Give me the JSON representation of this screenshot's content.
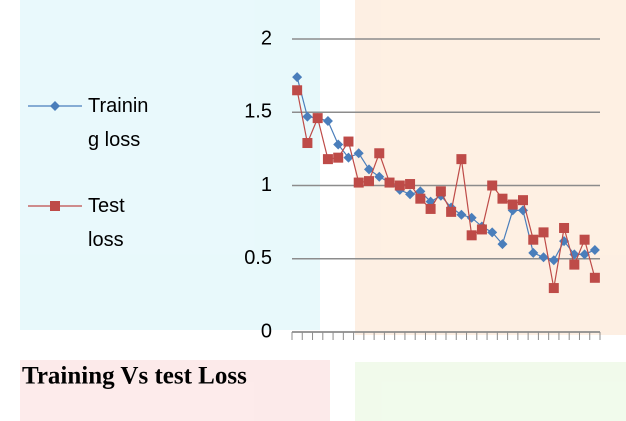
{
  "chart_data": {
    "type": "line",
    "title": "Training Vs test Loss",
    "categories": [
      null,
      null,
      null,
      null,
      null,
      null,
      null,
      null,
      null,
      null,
      null,
      null,
      null,
      null,
      null,
      null,
      null,
      null,
      null,
      null,
      null,
      null,
      null,
      null,
      null,
      null,
      null,
      null,
      null,
      null
    ],
    "series": [
      {
        "name": "Training loss",
        "color": "#4a7ebb",
        "marker": "diamond",
        "values": [
          1.74,
          1.47,
          1.46,
          1.44,
          1.28,
          1.19,
          1.22,
          1.11,
          1.06,
          1.02,
          0.97,
          0.94,
          0.96,
          0.89,
          0.93,
          0.85,
          0.8,
          0.78,
          0.72,
          0.68,
          0.6,
          0.83,
          0.83,
          0.54,
          0.51,
          0.49,
          0.62,
          0.53,
          0.53,
          0.56
        ]
      },
      {
        "name": "Test loss",
        "color": "#be4b48",
        "marker": "square",
        "values": [
          1.65,
          1.29,
          1.46,
          1.18,
          1.19,
          1.3,
          1.02,
          1.03,
          1.22,
          1.02,
          1.0,
          1.01,
          0.91,
          0.84,
          0.96,
          0.82,
          1.18,
          0.66,
          0.7,
          1.0,
          0.91,
          0.87,
          0.9,
          0.63,
          0.68,
          0.3,
          0.71,
          0.46,
          0.63,
          0.37
        ]
      }
    ],
    "ylim": [
      0,
      2
    ],
    "yticks": [
      0,
      0.5,
      1,
      1.5,
      2
    ],
    "grid": true
  }
}
